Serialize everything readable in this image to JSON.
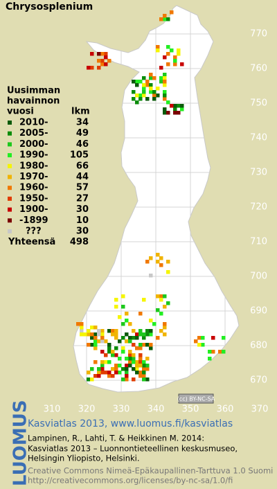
{
  "title": "Chrysosplenium",
  "legend": {
    "header": [
      "Uusimman",
      "havainnon",
      "vuosi"
    ],
    "count_header": "lkm",
    "items": [
      {
        "label": "2010-",
        "count": 34,
        "color": "#0a5a0a"
      },
      {
        "label": "2005-",
        "count": 49,
        "color": "#0a8c0a"
      },
      {
        "label": "2000-",
        "count": 46,
        "color": "#1cc81c"
      },
      {
        "label": "1990-",
        "count": 105,
        "color": "#22ee22"
      },
      {
        "label": "1980-",
        "count": 66,
        "color": "#f5f500"
      },
      {
        "label": "1970-",
        "count": 44,
        "color": "#f0b400"
      },
      {
        "label": "1960-",
        "count": 57,
        "color": "#f07800"
      },
      {
        "label": "1950-",
        "count": 27,
        "color": "#e03c00"
      },
      {
        "label": "1900-",
        "count": 30,
        "color": "#c80000"
      },
      {
        "label": "-1899",
        "count": 10,
        "color": "#7a0000"
      },
      {
        "label": "???",
        "count": 30,
        "color": "#c8c8c8"
      }
    ],
    "total_label": "Yhteensä",
    "total": 498
  },
  "grid": {
    "xticks": [
      310,
      320,
      330,
      340,
      350,
      360,
      370
    ],
    "yticks": [
      670,
      680,
      690,
      700,
      710,
      720,
      730,
      740,
      750,
      760,
      770
    ]
  },
  "badge": "(cc) BY-NC-SA",
  "logo": "LUOMUS",
  "footer": {
    "heading": "Kasviatlas 2013, www.luomus.fi/kasviatlas",
    "citation": [
      "Lampinen, R., Lahti, T. & Heikkinen M. 2014:",
      "Kasviatlas 2013 – Luonnontieteellinen keskusmuseo,",
      "Helsingin Yliopisto, Helsinki."
    ],
    "license": [
      "Creative Commons Nimeä-Epäkaupallinen-Tarttuva 1.0 Suomi",
      "http://creativecommons.org/licenses/by-nc-sa/1.0/fi"
    ]
  }
}
